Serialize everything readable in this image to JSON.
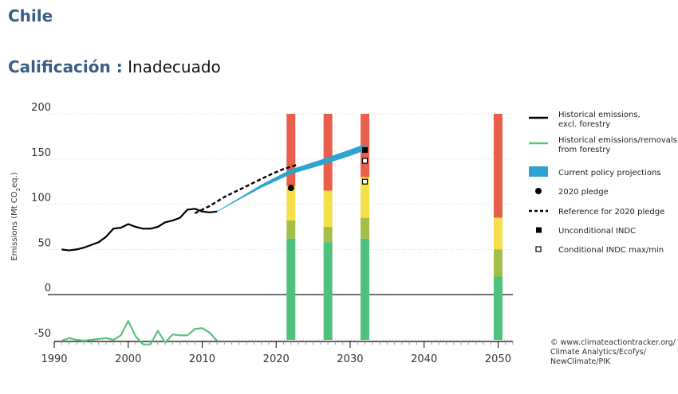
{
  "header": {
    "country": "Chile",
    "rating_label": "Calificación :",
    "rating_value": "Inadecuado"
  },
  "chart_data": {
    "type": "line",
    "ylabel": "Emissions (Mt CO",
    "ylabel_sub": "2",
    "ylabel_tail": "eq.)",
    "xlim": [
      1990,
      2052
    ],
    "ylim": [
      -50,
      200
    ],
    "yticks": [
      200,
      150,
      100,
      50,
      0,
      -50
    ],
    "xticks": [
      1990,
      2000,
      2010,
      2020,
      2030,
      2040,
      2050
    ],
    "series": [
      {
        "name": "Historical emissions, excl. forestry",
        "color": "#000000",
        "x": [
          1991,
          1992,
          1993,
          1994,
          1995,
          1996,
          1997,
          1998,
          1999,
          2000,
          2001,
          2002,
          2003,
          2004,
          2005,
          2006,
          2007,
          2008,
          2009,
          2010,
          2011,
          2012
        ],
        "y": [
          50,
          49,
          50,
          52,
          55,
          58,
          64,
          73,
          74,
          78,
          75,
          73,
          73,
          75,
          80,
          82,
          85,
          94,
          95,
          92,
          91,
          92
        ]
      },
      {
        "name": "Historical emissions/removals, from forestry",
        "color": "#5bc17f",
        "x": [
          1991,
          1992,
          1993,
          1994,
          1995,
          1996,
          1997,
          1998,
          1999,
          2000,
          2001,
          2002,
          2003,
          2004,
          2005,
          2006,
          2007,
          2008,
          2009,
          2010,
          2011,
          2012
        ],
        "y": [
          -51,
          -48,
          -50,
          -51,
          -50,
          -49,
          -48,
          -50,
          -45,
          -29,
          -46,
          -55,
          -55,
          -40,
          -53,
          -44,
          -45,
          -45,
          -38,
          -37,
          -42,
          -51
        ]
      },
      {
        "name": "Current policy projections",
        "color": "#2ea3d1",
        "x": [
          2012,
          2015,
          2018,
          2022,
          2026,
          2030,
          2032
        ],
        "y": [
          92,
          106,
          120,
          136,
          146,
          157,
          163
        ],
        "width": [
          1,
          2,
          4,
          6,
          7,
          8,
          8
        ]
      },
      {
        "name": "Reference for 2020 pledge",
        "color": "#000000",
        "x": [
          2009,
          2011,
          2013,
          2015,
          2017,
          2019,
          2021,
          2023
        ],
        "y": [
          90,
          98,
          108,
          116,
          124,
          132,
          139,
          144
        ]
      }
    ],
    "points": [
      {
        "name": "2020 pledge",
        "x": 2022,
        "y": 118,
        "marker": "circle"
      },
      {
        "name": "Unconditional INDC",
        "x": 2032,
        "y": 160,
        "marker": "square"
      },
      {
        "name": "Conditional INDC max/min",
        "x": 2032,
        "y": 148,
        "marker": "open-square"
      },
      {
        "name": "Conditional INDC max/min",
        "x": 2032,
        "y": 125,
        "marker": "open-square"
      }
    ],
    "rating_bars": {
      "years": [
        2022,
        2027,
        2032,
        2050
      ],
      "zones": [
        {
          "color": "#e8604c",
          "from": [
            120,
            115,
            130,
            85
          ]
        },
        {
          "color": "#f5e04a",
          "from": [
            82,
            75,
            85,
            50
          ]
        },
        {
          "color": "#a3bf45",
          "from": [
            62,
            58,
            62,
            20
          ]
        },
        {
          "color": "#4ec27d",
          "from": [
            -50,
            -50,
            -50,
            -50
          ]
        }
      ]
    },
    "legend": [
      {
        "label": "Historical emissions,",
        "label2": "excl. forestry",
        "style": "line",
        "color": "#000000"
      },
      {
        "label": "Historical emissions/removals,",
        "label2": "from forestry",
        "style": "line",
        "color": "#5bc17f"
      },
      {
        "label": "Current policy projections",
        "label2": "",
        "style": "band",
        "color": "#2ea3d1"
      },
      {
        "label": "2020 pledge",
        "label2": "",
        "style": "circle",
        "color": "#000000"
      },
      {
        "label": "Reference for 2020 pledge",
        "label2": "",
        "style": "dashed",
        "color": "#000000"
      },
      {
        "label": "Unconditional INDC",
        "label2": "",
        "style": "square",
        "color": "#000000"
      },
      {
        "label": "Conditional INDC max/min",
        "label2": "",
        "style": "open-square",
        "color": "#000000"
      }
    ],
    "legend_position": "right",
    "credit": [
      "© www.climateactiontracker.org/",
      "Climate Analytics/Ecofys/",
      "NewClimate/PIK"
    ]
  }
}
